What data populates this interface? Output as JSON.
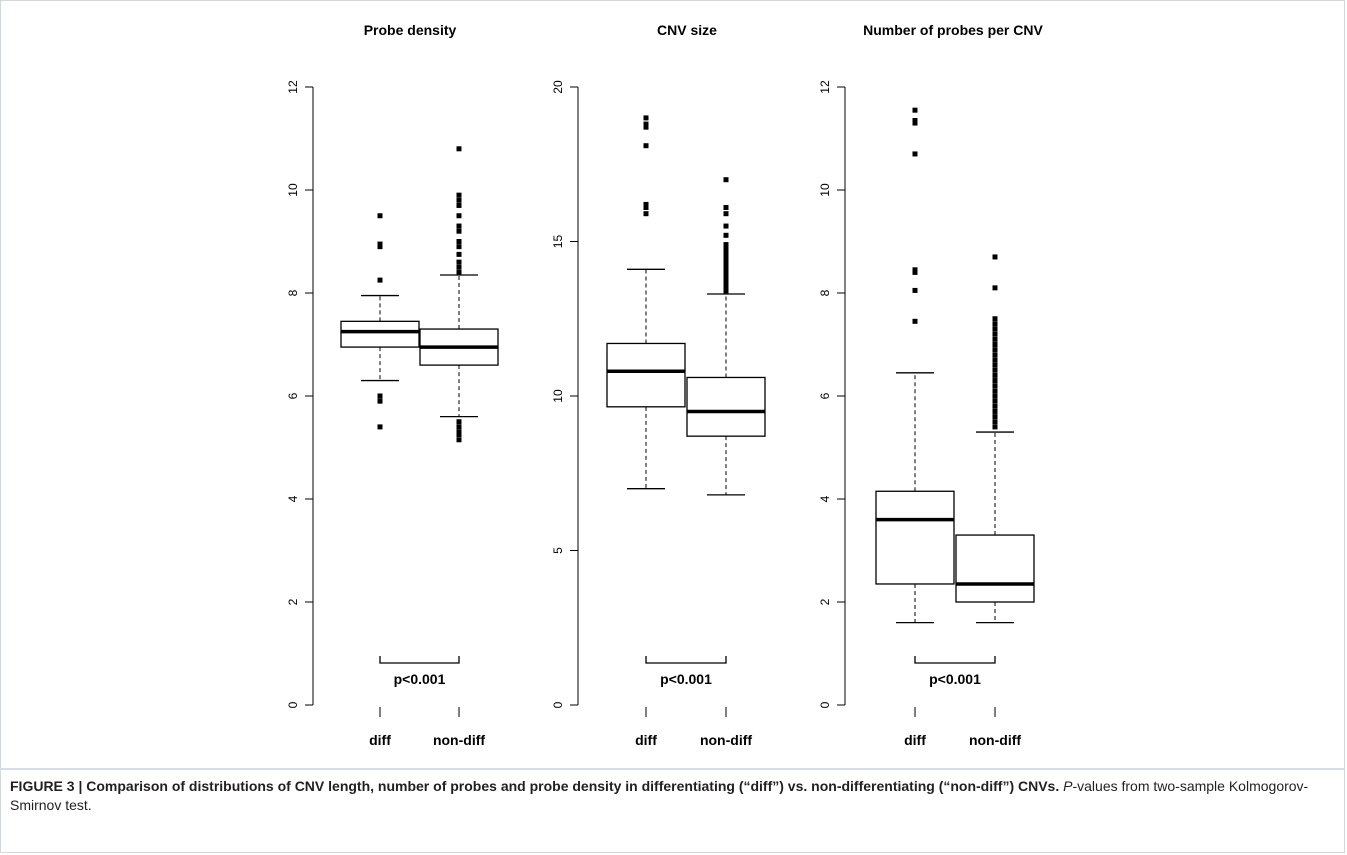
{
  "caption": {
    "figure_label": "FIGURE 3 | ",
    "bold_text": "Comparison of distributions of CNV length, number of probes and probe density in differentiating (“diff”) vs. non-differentiating (“non-diff”) CNVs.",
    "p_italic": "P",
    "rest": "-values from two-sample Kolmogorov-Smirnov test."
  },
  "chart_data": [
    {
      "type": "boxplot",
      "title": "Probe density",
      "ylim": [
        0,
        12
      ],
      "yticks": [
        0,
        2,
        4,
        6,
        8,
        10,
        12
      ],
      "ytick_labels": [
        "0",
        "2",
        "4",
        "6",
        "8",
        "10",
        "12"
      ],
      "categories": [
        "diff",
        "non-diff"
      ],
      "pvalue_label": "p<0.001",
      "boxes": [
        {
          "category": "diff",
          "whisker_low": 6.3,
          "q1": 6.95,
          "median": 7.25,
          "q3": 7.45,
          "whisker_high": 7.95,
          "outliers": [
            5.4,
            5.9,
            6.0,
            8.25,
            8.9,
            8.95,
            9.5
          ]
        },
        {
          "category": "non-diff",
          "whisker_low": 5.6,
          "q1": 6.6,
          "median": 6.95,
          "q3": 7.3,
          "whisker_high": 8.35,
          "outliers": [
            5.15,
            5.25,
            5.3,
            5.4,
            5.5,
            8.4,
            8.5,
            8.6,
            8.75,
            8.9,
            9.0,
            9.2,
            9.3,
            9.5,
            9.7,
            9.8,
            9.9,
            10.8
          ]
        }
      ]
    },
    {
      "type": "boxplot",
      "title": "CNV size",
      "ylim": [
        0,
        20
      ],
      "yticks": [
        0,
        5,
        10,
        15,
        20
      ],
      "ytick_labels": [
        "0",
        "5",
        "10",
        "15",
        "20"
      ],
      "categories": [
        "diff",
        "non-diff"
      ],
      "pvalue_label": "p<0.001",
      "boxes": [
        {
          "category": "diff",
          "whisker_low": 7.0,
          "q1": 9.65,
          "median": 10.8,
          "q3": 11.7,
          "whisker_high": 14.1,
          "outliers": [
            15.9,
            16.1,
            16.2,
            18.1,
            18.7,
            18.8,
            19.0
          ]
        },
        {
          "category": "non-diff",
          "whisker_low": 6.8,
          "q1": 8.7,
          "median": 9.5,
          "q3": 10.6,
          "whisker_high": 13.3,
          "outliers": [
            13.4,
            13.5,
            13.6,
            13.7,
            13.8,
            13.9,
            14.0,
            14.1,
            14.2,
            14.3,
            14.4,
            14.5,
            14.6,
            14.7,
            14.8,
            14.9,
            15.2,
            15.5,
            15.9,
            16.1,
            17.0
          ]
        }
      ]
    },
    {
      "type": "boxplot",
      "title": "Number of probes per CNV",
      "ylim": [
        0,
        12
      ],
      "yticks": [
        0,
        2,
        4,
        6,
        8,
        10,
        12
      ],
      "ytick_labels": [
        "0",
        "2",
        "4",
        "6",
        "8",
        "10",
        "12"
      ],
      "categories": [
        "diff",
        "non-diff"
      ],
      "pvalue_label": "p<0.001",
      "boxes": [
        {
          "category": "diff",
          "whisker_low": 1.6,
          "q1": 2.35,
          "median": 3.6,
          "q3": 4.15,
          "whisker_high": 6.45,
          "outliers": [
            7.45,
            8.05,
            8.4,
            8.45,
            10.7,
            11.3,
            11.35,
            11.55
          ]
        },
        {
          "category": "non-diff",
          "whisker_low": 1.6,
          "q1": 2.0,
          "median": 2.35,
          "q3": 3.3,
          "whisker_high": 5.3,
          "outliers": [
            5.4,
            5.5,
            5.6,
            5.7,
            5.8,
            5.9,
            6.0,
            6.1,
            6.2,
            6.3,
            6.4,
            6.5,
            6.6,
            6.7,
            6.8,
            6.9,
            7.0,
            7.1,
            7.2,
            7.3,
            7.4,
            7.5,
            8.1,
            8.7
          ]
        }
      ]
    }
  ]
}
